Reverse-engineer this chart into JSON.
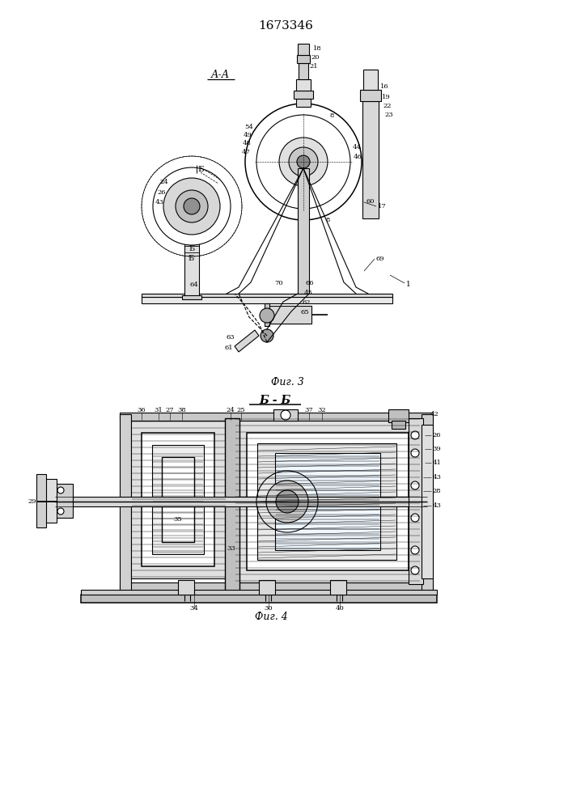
{
  "title": "1673346",
  "bg_color": "#ffffff",
  "line_color": "#000000",
  "fig_width": 7.07,
  "fig_height": 10.0,
  "dpi": 100,
  "fig3_caption": "Фиг. 3",
  "fig4_caption": "Фиг. 4",
  "fig3_label": "А-А",
  "fig4_label": "Б - Б"
}
